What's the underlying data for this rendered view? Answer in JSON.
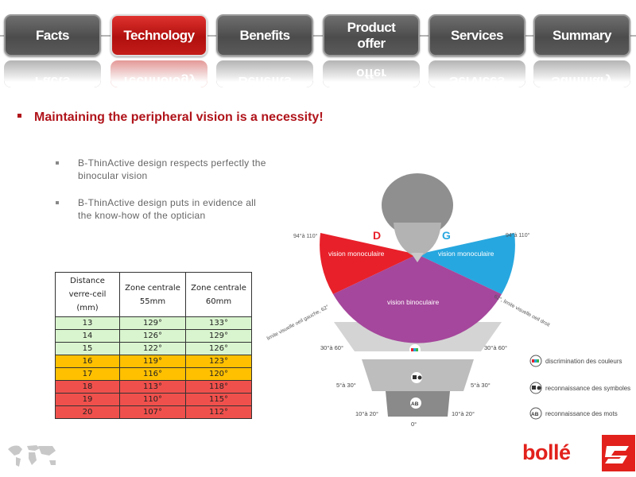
{
  "nav": {
    "items": [
      {
        "label": "Facts",
        "active": false
      },
      {
        "label": "Technology",
        "active": true
      },
      {
        "label": "Benefits",
        "active": false
      },
      {
        "label": "Product\noffer",
        "active": false
      },
      {
        "label": "Services",
        "active": false
      },
      {
        "label": "Summary",
        "active": false
      }
    ]
  },
  "headline": "Maintaining the peripheral vision is a necessity!",
  "bullets": [
    "B-ThinActive design respects perfectly the binocular vision",
    "B-ThinActive design puts in evidence all the know-how of the optician"
  ],
  "table": {
    "headers": [
      "Distance verre-ceil (mm)",
      "Zone centrale 55mm",
      "Zone centrale 60mm"
    ],
    "rows": [
      {
        "cells": [
          "13",
          "129°",
          "133°"
        ],
        "color": "green"
      },
      {
        "cells": [
          "14",
          "126°",
          "129°"
        ],
        "color": "green"
      },
      {
        "cells": [
          "15",
          "122°",
          "126°"
        ],
        "color": "green"
      },
      {
        "cells": [
          "16",
          "119°",
          "123°"
        ],
        "color": "yellow"
      },
      {
        "cells": [
          "17",
          "116°",
          "120°"
        ],
        "color": "yellow"
      },
      {
        "cells": [
          "18",
          "113°",
          "118°"
        ],
        "color": "red"
      },
      {
        "cells": [
          "19",
          "110°",
          "115°"
        ],
        "color": "red"
      },
      {
        "cells": [
          "20",
          "107°",
          "112°"
        ],
        "color": "red"
      }
    ]
  },
  "diagram": {
    "left_letter": "D",
    "right_letter": "G",
    "vision_left": "vision monoculaire",
    "vision_right": "vision monoculaire",
    "vision_center": "vision binoculaire",
    "angle_top_left": "94°à 110°",
    "angle_top_right": "94°à 110°",
    "limit_left": "limite visuelle oeil gauche, 62°",
    "limit_right": "62°, limite visuelle oeil droit",
    "band1_left": "30°à 60°",
    "band1_right": "30°à 60°",
    "band2_left": "5°à 30°",
    "band2_right": "5°à 30°",
    "band3_left": "10°à 20°",
    "band3_right": "10°à 20°",
    "zero": "0°",
    "ab_mark": "AB",
    "colors": {
      "left": "#e8202a",
      "right": "#27a7df",
      "center": "#a5479c"
    },
    "legend": [
      {
        "icon": "color-discrimination-icon",
        "label": "discrimination des couleurs"
      },
      {
        "icon": "symbol-recognition-icon",
        "label": "reconnaissance des symboles"
      },
      {
        "icon": "word-recognition-icon",
        "label": "reconnaissance des mots",
        "mark": "AB"
      }
    ]
  },
  "brand": {
    "name": "bollé"
  }
}
